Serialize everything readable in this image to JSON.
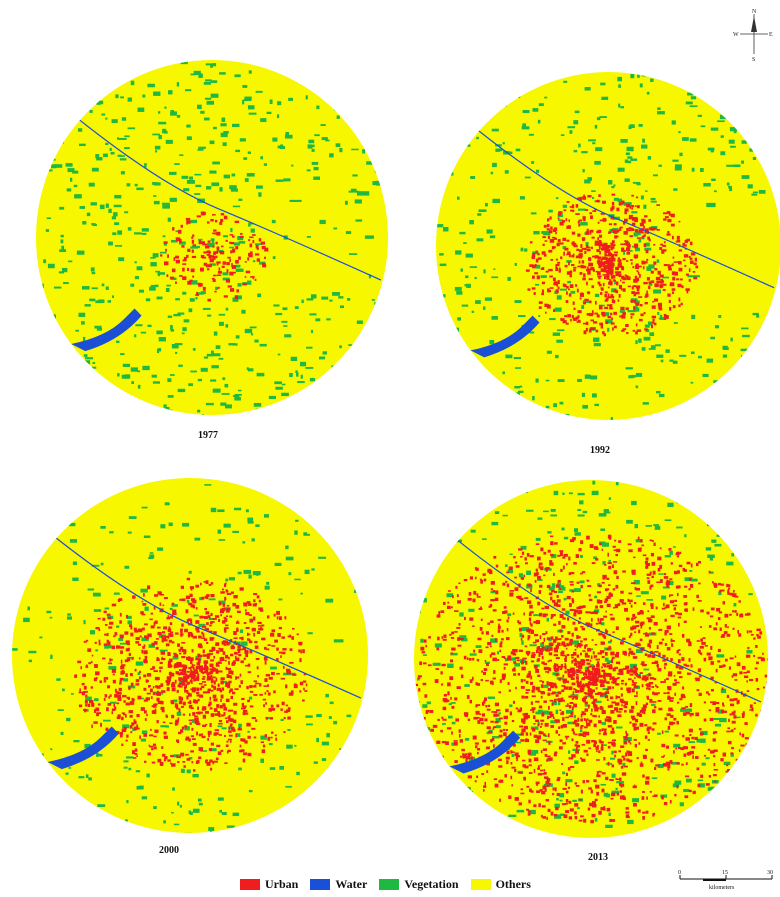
{
  "legend": {
    "items": [
      {
        "label": "Urban",
        "color": "#ef1d1d"
      },
      {
        "label": "Water",
        "color": "#1a4fd6"
      },
      {
        "label": "Vegetation",
        "color": "#1fb840"
      },
      {
        "label": "Others",
        "color": "#f7f700"
      }
    ]
  },
  "maps": [
    {
      "year": "1977",
      "urban_level": 0.05,
      "vegetation_level": 0.55
    },
    {
      "year": "1992",
      "urban_level": 0.25,
      "vegetation_level": 0.35
    },
    {
      "year": "2000",
      "urban_level": 0.4,
      "vegetation_level": 0.2
    },
    {
      "year": "2013",
      "urban_level": 0.75,
      "vegetation_level": 0.3
    }
  ],
  "north_arrow": {
    "n": "N",
    "s": "S",
    "e": "E",
    "w": "W"
  },
  "scale_bar": {
    "ticks": [
      "0",
      "15",
      "30"
    ],
    "unit": "kilometers"
  }
}
